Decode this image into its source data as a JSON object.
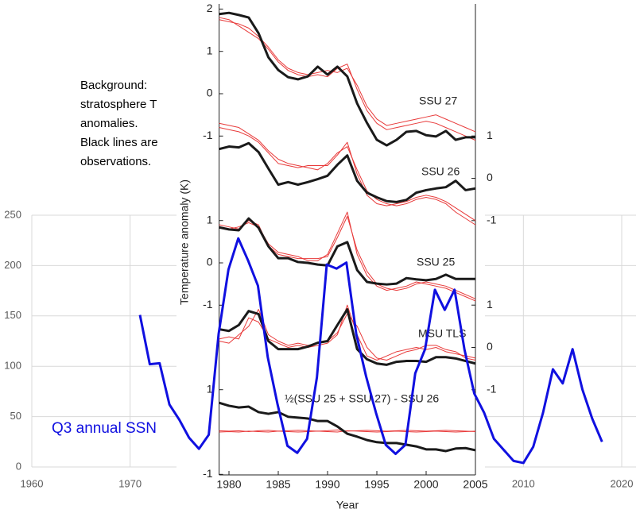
{
  "chart_data": [
    {
      "type": "line",
      "note": [
        "Background:",
        "stratosphere T",
        "anomalies.",
        "Black lines are",
        "observations."
      ],
      "xlim": [
        1960,
        2020
      ],
      "xticks": [
        1960,
        1970,
        1980,
        1990,
        2000,
        2010,
        2020
      ],
      "ylim": [
        0,
        250
      ],
      "yticks": [
        0,
        50,
        100,
        150,
        200,
        250
      ],
      "grid": true,
      "series": [
        {
          "name": "Q3 annual SSN",
          "color": "#1010e0",
          "x": [
            1971,
            1972,
            1973,
            1974,
            1975,
            1976,
            1977,
            1978,
            1979,
            1980,
            1981,
            1982,
            1983,
            1984,
            1985,
            1986,
            1987,
            1988,
            1989,
            1990,
            1991,
            1992,
            1993,
            1994,
            1995,
            1996,
            1997,
            1998,
            1999,
            2000,
            2001,
            2002,
            2003,
            2004,
            2005,
            2006,
            2007,
            2008,
            2009,
            2010,
            2011,
            2012,
            2013,
            2014,
            2015,
            2016,
            2017,
            2018
          ],
          "values": [
            151,
            102,
            103,
            62,
            47,
            29,
            18,
            32,
            132,
            196,
            227,
            205,
            180,
            109,
            62,
            21,
            14,
            28,
            89,
            201,
            197,
            203,
            132,
            90,
            54,
            22,
            13,
            22,
            93,
            117,
            176,
            156,
            176,
            117,
            73,
            54,
            28,
            17,
            6,
            4,
            20,
            54,
            97,
            83,
            117,
            77,
            48,
            25
          ]
        }
      ]
    },
    {
      "type": "panels",
      "ylabel": "Temperature anomaly (K)",
      "xlabel": "Year",
      "xlim": [
        1979,
        2005
      ],
      "xticks": [
        1980,
        1985,
        1990,
        1995,
        2000,
        2005
      ],
      "x": [
        1979,
        1980,
        1981,
        1982,
        1983,
        1984,
        1985,
        1986,
        1987,
        1988,
        1989,
        1990,
        1991,
        1992,
        1993,
        1994,
        1995,
        1996,
        1997,
        1998,
        1999,
        2000,
        2001,
        2002,
        2003,
        2004,
        2005
      ],
      "obs_color": "#1a1a1a",
      "models_color": "#e83a3a",
      "panels": [
        {
          "label": "SSU 27",
          "axis": "y",
          "yticks": [
            2,
            1,
            0,
            -1
          ],
          "obs": [
            1.88,
            1.91,
            1.86,
            1.8,
            1.43,
            0.86,
            0.56,
            0.39,
            0.34,
            0.41,
            0.64,
            0.45,
            0.64,
            0.41,
            -0.23,
            -0.69,
            -1.09,
            -1.22,
            -1.09,
            -0.9,
            -0.88,
            -0.98,
            -1.01,
            -0.88,
            -1.09,
            -1.03,
            -1.03
          ],
          "models": [
            [
              1.75,
              1.7,
              1.65,
              1.55,
              1.35,
              1.1,
              0.8,
              0.6,
              0.5,
              0.45,
              0.5,
              0.55,
              0.5,
              0.6,
              0.2,
              -0.3,
              -0.6,
              -0.75,
              -0.7,
              -0.65,
              -0.6,
              -0.55,
              -0.5,
              -0.6,
              -0.7,
              -0.8,
              -0.9
            ],
            [
              1.8,
              1.75,
              1.6,
              1.45,
              1.3,
              1.05,
              0.75,
              0.55,
              0.45,
              0.4,
              0.45,
              0.4,
              0.6,
              0.7,
              0.1,
              -0.4,
              -0.7,
              -0.85,
              -0.8,
              -0.75,
              -0.7,
              -0.65,
              -0.7,
              -0.8,
              -0.9,
              -1.0,
              -1.1
            ]
          ]
        },
        {
          "label": "SSU 26",
          "axis": "y2",
          "yticks": [
            1,
            0,
            -1
          ],
          "obs": [
            0.69,
            0.75,
            0.73,
            0.83,
            0.62,
            0.23,
            -0.15,
            -0.09,
            -0.15,
            -0.09,
            -0.02,
            0.06,
            0.32,
            0.54,
            -0.06,
            -0.34,
            -0.45,
            -0.54,
            -0.56,
            -0.51,
            -0.34,
            -0.28,
            -0.24,
            -0.21,
            -0.06,
            -0.28,
            -0.24
          ],
          "models": [
            [
              1.2,
              1.15,
              1.1,
              1.0,
              0.85,
              0.6,
              0.35,
              0.3,
              0.25,
              0.3,
              0.3,
              0.3,
              0.55,
              0.85,
              0.1,
              -0.4,
              -0.6,
              -0.65,
              -0.6,
              -0.55,
              -0.45,
              -0.4,
              -0.45,
              -0.55,
              -0.7,
              -0.85,
              -1.0
            ],
            [
              1.3,
              1.25,
              1.2,
              1.05,
              0.9,
              0.65,
              0.45,
              0.35,
              0.3,
              0.25,
              0.2,
              0.35,
              0.6,
              0.75,
              0.2,
              -0.3,
              -0.5,
              -0.6,
              -0.65,
              -0.6,
              -0.5,
              -0.45,
              -0.5,
              -0.6,
              -0.8,
              -0.95,
              -1.1
            ]
          ]
        },
        {
          "label": "SSU 25",
          "axis": "y",
          "yticks": [
            1,
            0,
            -1
          ],
          "obs": [
            0.84,
            0.79,
            0.77,
            1.05,
            0.83,
            0.39,
            0.11,
            0.11,
            0.02,
            0,
            -0.04,
            -0.06,
            0.39,
            0.49,
            -0.17,
            -0.45,
            -0.49,
            -0.51,
            -0.49,
            -0.36,
            -0.39,
            -0.41,
            -0.38,
            -0.28,
            -0.38,
            -0.38,
            -0.38
          ],
          "models": [
            [
              0.9,
              0.85,
              0.8,
              1.0,
              0.9,
              0.4,
              0.2,
              0.15,
              0.1,
              0.1,
              0.1,
              0.15,
              0.6,
              1.1,
              0.3,
              -0.2,
              -0.5,
              -0.6,
              -0.65,
              -0.6,
              -0.5,
              -0.45,
              -0.5,
              -0.55,
              -0.65,
              -0.75,
              -0.85
            ],
            [
              0.85,
              0.8,
              0.85,
              0.95,
              0.85,
              0.45,
              0.25,
              0.2,
              0.15,
              0.05,
              0.05,
              0.2,
              0.7,
              1.2,
              0.2,
              -0.3,
              -0.55,
              -0.65,
              -0.6,
              -0.55,
              -0.45,
              -0.5,
              -0.55,
              -0.6,
              -0.7,
              -0.8,
              -0.9
            ]
          ]
        },
        {
          "label": "MSU TLS",
          "axis": "y2",
          "yticks": [
            1,
            0,
            -1
          ],
          "obs": [
            0.43,
            0.39,
            0.53,
            0.86,
            0.79,
            0.15,
            -0.04,
            -0.04,
            -0.04,
            0.02,
            0.11,
            0.15,
            0.53,
            0.9,
            -0.04,
            -0.28,
            -0.38,
            -0.41,
            -0.34,
            -0.32,
            -0.32,
            -0.34,
            -0.23,
            -0.23,
            -0.26,
            -0.32,
            -0.38
          ],
          "models": [
            [
              0.2,
              0.25,
              0.2,
              0.7,
              0.6,
              0.2,
              0.1,
              0.0,
              0.05,
              0.0,
              0.05,
              0.1,
              0.3,
              1.0,
              0.3,
              -0.2,
              -0.3,
              -0.2,
              -0.1,
              -0.05,
              0.0,
              -0.05,
              0.0,
              -0.1,
              -0.15,
              -0.2,
              -0.25
            ],
            [
              0.15,
              0.1,
              0.3,
              0.5,
              0.9,
              0.3,
              0.15,
              0.05,
              0.1,
              0.05,
              0.1,
              0.15,
              0.35,
              0.8,
              0.5,
              0.0,
              -0.25,
              -0.3,
              -0.2,
              -0.1,
              -0.05,
              0.05,
              0.05,
              -0.05,
              -0.1,
              -0.25,
              -0.3
            ]
          ]
        },
        {
          "label": "½(SSU 25 + SSU 27) - SSU 26",
          "axis": "y",
          "yticks": [
            1,
            -1
          ],
          "obs": [
            0.69,
            0.62,
            0.58,
            0.6,
            0.47,
            0.43,
            0.47,
            0.36,
            0.34,
            0.32,
            0.26,
            0.26,
            0.13,
            -0.04,
            -0.11,
            -0.19,
            -0.24,
            -0.26,
            -0.26,
            -0.3,
            -0.34,
            -0.41,
            -0.41,
            -0.45,
            -0.39,
            -0.38,
            -0.43
          ],
          "models": [
            [
              0.0,
              0.01,
              0.0,
              0.02,
              0.01,
              0.0,
              0.02,
              0.01,
              0.0,
              0.01,
              0.02,
              0.01,
              0.0,
              0.03,
              0.02,
              0.01,
              0.0,
              0.01,
              0.02,
              0.01,
              0.0,
              0.01,
              0.02,
              0.01,
              0.0,
              0.01,
              0.02
            ],
            [
              0.03,
              0.02,
              0.03,
              0.01,
              0.03,
              0.04,
              0.02,
              0.03,
              0.04,
              0.03,
              0.02,
              0.03,
              0.05,
              0.02,
              0.03,
              0.04,
              0.03,
              0.02,
              0.03,
              0.04,
              0.03,
              0.02,
              0.03,
              0.04,
              0.03,
              0.02,
              0.01
            ]
          ]
        }
      ]
    }
  ]
}
